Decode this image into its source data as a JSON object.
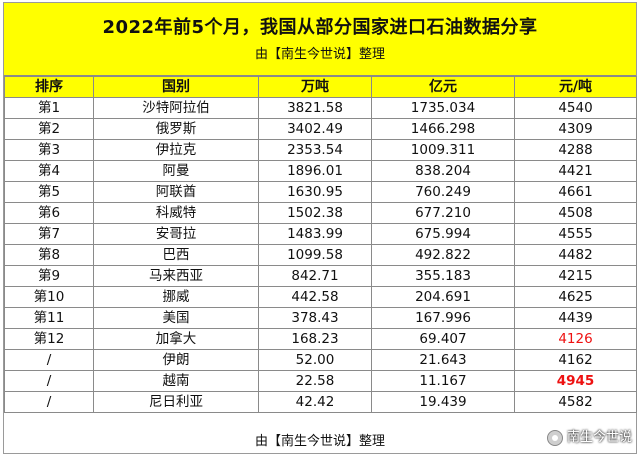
{
  "header": {
    "title": "2022年前5个月，我国从部分国家进口石油数据分享",
    "subtitle": "由【南生今世说】整理"
  },
  "table": {
    "columns": [
      "排序",
      "国别",
      "万吨",
      "亿元",
      "元/吨"
    ],
    "rows": [
      {
        "rank": "第1",
        "country": "沙特阿拉伯",
        "tons": "3821.58",
        "yuan": "1735.034",
        "price": "4540",
        "highlight": ""
      },
      {
        "rank": "第2",
        "country": "俄罗斯",
        "tons": "3402.49",
        "yuan": "1466.298",
        "price": "4309",
        "highlight": ""
      },
      {
        "rank": "第3",
        "country": "伊拉克",
        "tons": "2353.54",
        "yuan": "1009.311",
        "price": "4288",
        "highlight": ""
      },
      {
        "rank": "第4",
        "country": "阿曼",
        "tons": "1896.01",
        "yuan": "838.204",
        "price": "4421",
        "highlight": ""
      },
      {
        "rank": "第5",
        "country": "阿联酋",
        "tons": "1630.95",
        "yuan": "760.249",
        "price": "4661",
        "highlight": ""
      },
      {
        "rank": "第6",
        "country": "科威特",
        "tons": "1502.38",
        "yuan": "677.210",
        "price": "4508",
        "highlight": ""
      },
      {
        "rank": "第7",
        "country": "安哥拉",
        "tons": "1483.99",
        "yuan": "675.994",
        "price": "4555",
        "highlight": ""
      },
      {
        "rank": "第8",
        "country": "巴西",
        "tons": "1099.58",
        "yuan": "492.822",
        "price": "4482",
        "highlight": ""
      },
      {
        "rank": "第9",
        "country": "马来西亚",
        "tons": "842.71",
        "yuan": "355.183",
        "price": "4215",
        "highlight": ""
      },
      {
        "rank": "第10",
        "country": "挪威",
        "tons": "442.58",
        "yuan": "204.691",
        "price": "4625",
        "highlight": ""
      },
      {
        "rank": "第11",
        "country": "美国",
        "tons": "378.43",
        "yuan": "167.996",
        "price": "4439",
        "highlight": ""
      },
      {
        "rank": "第12",
        "country": "加拿大",
        "tons": "168.23",
        "yuan": "69.407",
        "price": "4126",
        "highlight": "red"
      },
      {
        "rank": "/",
        "country": "伊朗",
        "tons": "52.00",
        "yuan": "21.643",
        "price": "4162",
        "highlight": ""
      },
      {
        "rank": "/",
        "country": "越南",
        "tons": "22.58",
        "yuan": "11.167",
        "price": "4945",
        "highlight": "red-bold"
      },
      {
        "rank": "/",
        "country": "尼日利亚",
        "tons": "42.42",
        "yuan": "19.439",
        "price": "4582",
        "highlight": ""
      }
    ]
  },
  "footer": {
    "text": "由【南生今世说】整理"
  },
  "watermark": {
    "text": "南生今世说",
    "icon": "account-avatar-icon"
  },
  "colors": {
    "header_bg": "#ffff00",
    "highlight_red": "#ee1111"
  }
}
